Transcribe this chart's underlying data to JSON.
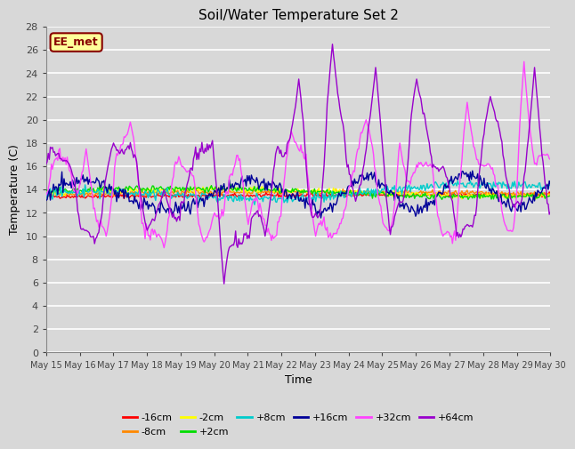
{
  "title": "Soil/Water Temperature Set 2",
  "xlabel": "Time",
  "ylabel": "Temperature (C)",
  "ylim": [
    0,
    28
  ],
  "yticks": [
    0,
    2,
    4,
    6,
    8,
    10,
    12,
    14,
    16,
    18,
    20,
    22,
    24,
    26,
    28
  ],
  "xtick_labels": [
    "May 15",
    "May 16",
    "May 17",
    "May 18",
    "May 19",
    "May 20",
    "May 21",
    "May 22",
    "May 23",
    "May 24",
    "May 25",
    "May 26",
    "May 27",
    "May 28",
    "May 29",
    "May 30"
  ],
  "legend_entries": [
    "-16cm",
    "-8cm",
    "-2cm",
    "+2cm",
    "+8cm",
    "+16cm",
    "+32cm",
    "+64cm"
  ],
  "line_colors": [
    "#ff0000",
    "#ff8800",
    "#ffff00",
    "#00dd00",
    "#00cccc",
    "#000099",
    "#ff44ff",
    "#9900cc"
  ],
  "bg_color": "#d8d8d8",
  "grid_color": "#c0c0c0",
  "annotation_text": "EE_met",
  "annotation_bg": "#ffff99",
  "annotation_border": "#880000",
  "annotation_text_color": "#880000"
}
